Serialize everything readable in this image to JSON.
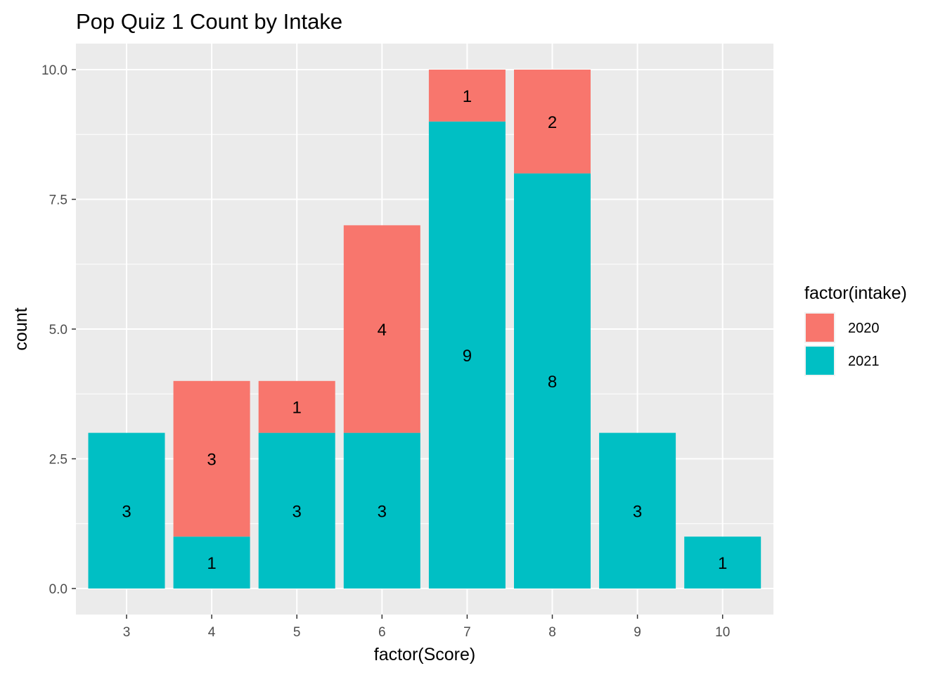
{
  "chart_data": {
    "type": "bar",
    "stacked": true,
    "title": "Pop Quiz 1 Count by Intake",
    "xlabel": "factor(Score)",
    "ylabel": "count",
    "categories": [
      "3",
      "4",
      "5",
      "6",
      "7",
      "8",
      "9",
      "10"
    ],
    "series": [
      {
        "name": "2020",
        "color": "#F8766D",
        "values": [
          0,
          3,
          1,
          4,
          1,
          2,
          0,
          0
        ]
      },
      {
        "name": "2021",
        "color": "#00BFC4",
        "values": [
          3,
          1,
          3,
          3,
          9,
          8,
          3,
          1
        ]
      }
    ],
    "ylim": [
      0,
      10.0
    ],
    "yticks": [
      "0.0",
      "2.5",
      "5.0",
      "7.5",
      "10.0"
    ],
    "ytick_values": [
      0,
      2.5,
      5,
      7.5,
      10
    ],
    "legend": {
      "title": "factor(intake)",
      "position": "right"
    },
    "grid": true,
    "panel_background": "#EBEBEB"
  }
}
